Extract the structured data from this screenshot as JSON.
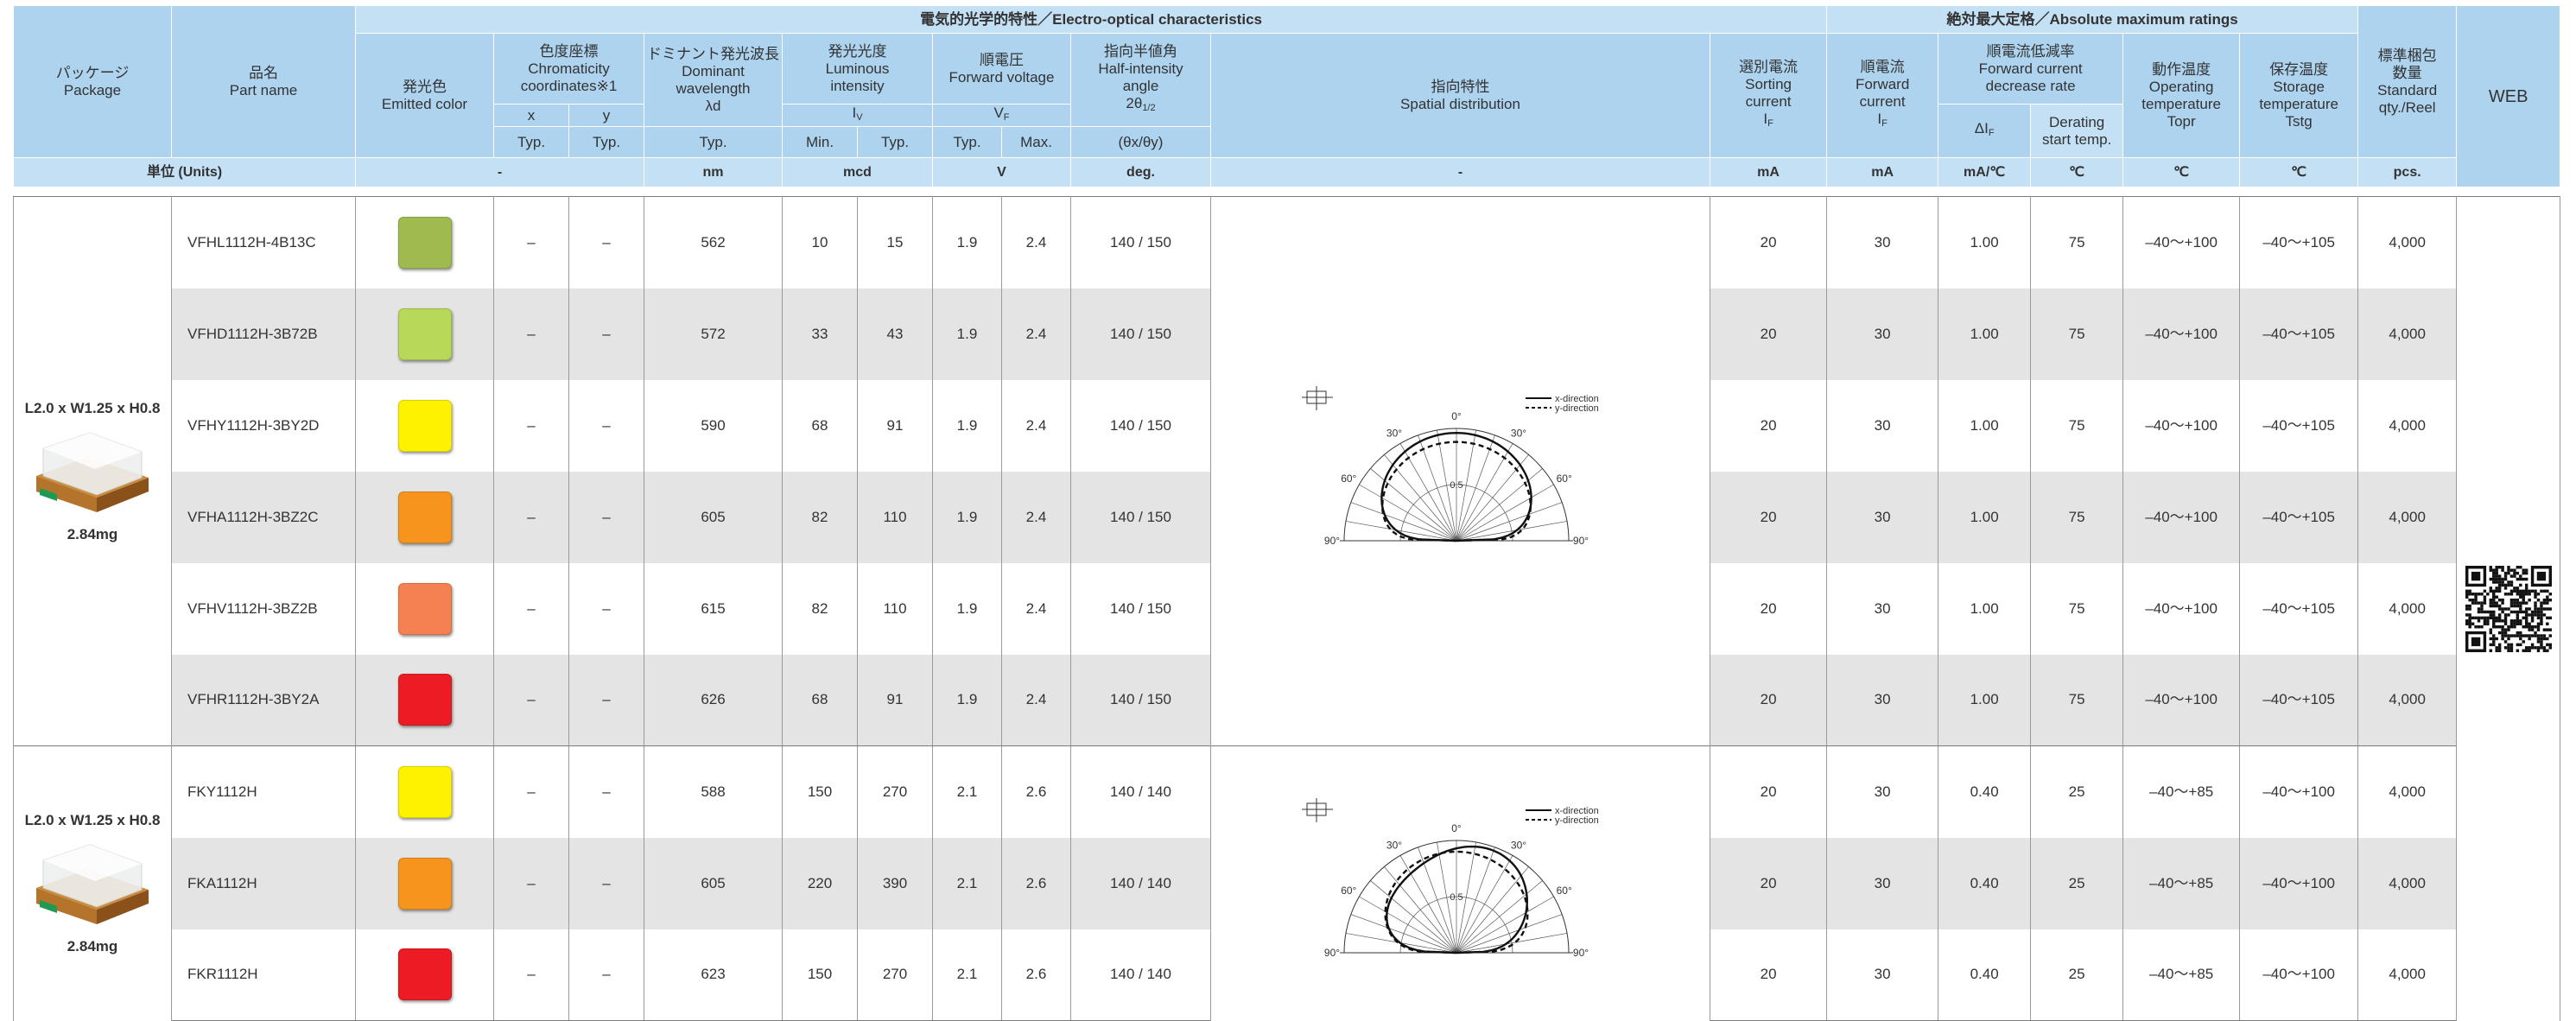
{
  "header": {
    "electro_optical": "電気的光学的特性／Electro-optical characteristics",
    "absolute_max": "絶対最大定格／Absolute maximum ratings",
    "package": [
      "パッケージ",
      "Package"
    ],
    "part_name": [
      "品名",
      "Part name"
    ],
    "emitted_color": [
      "発光色",
      "Emitted color"
    ],
    "chromaticity": [
      "色度座標",
      "Chromaticity",
      "coordinates※1"
    ],
    "chromaticity_axes": [
      "x",
      "y"
    ],
    "chromaticity_cols": [
      "Typ.",
      "Typ."
    ],
    "dominant": [
      "ドミナント発光波長",
      "Dominant",
      "wavelength",
      "λd"
    ],
    "dominant_col": "Typ.",
    "luminous": [
      "発光光度",
      "Luminous",
      "intensity"
    ],
    "luminous_symbol": {
      "main": "I",
      "sub": "V"
    },
    "luminous_cols": [
      "Min.",
      "Typ."
    ],
    "forward_voltage": [
      "順電圧",
      "Forward voltage"
    ],
    "forward_voltage_symbol": {
      "main": "V",
      "sub": "F"
    },
    "forward_voltage_cols": [
      "Typ.",
      "Max."
    ],
    "half_angle": [
      "指向半値角",
      "Half-intensity",
      "angle"
    ],
    "half_angle_symbol": {
      "main": "2θ",
      "sub": "1/2"
    },
    "half_angle_col": "(θx/θy)",
    "spatial": [
      "指向特性",
      "Spatial distribution"
    ],
    "sorting": [
      "選別電流",
      "Sorting",
      "current"
    ],
    "sorting_symbol": {
      "main": "I",
      "sub": "F"
    },
    "forward_current": [
      "順電流",
      "Forward",
      "current"
    ],
    "forward_current_symbol": {
      "main": "I",
      "sub": "F"
    },
    "decrease_rate": [
      "順電流低減率",
      "Forward current",
      "decrease rate"
    ],
    "decrease_rate_symbol": {
      "main": "ΔI",
      "sub": "F"
    },
    "derating": [
      "Derating",
      "start temp."
    ],
    "operating": [
      "動作温度",
      "Operating",
      "temperature",
      "Topr"
    ],
    "storage": [
      "保存温度",
      "Storage",
      "temperature",
      "Tstg"
    ],
    "qty": [
      "標準梱包",
      "数量",
      "Standard",
      "qty./Reel"
    ],
    "web": "WEB"
  },
  "units": {
    "label": "単位 (Units)",
    "values": [
      "-",
      "nm",
      "mcd",
      "V",
      "deg.",
      "-",
      "mA",
      "mA",
      "mA/℃",
      "℃",
      "℃",
      "℃",
      "pcs."
    ]
  },
  "groups": [
    {
      "package": {
        "size": "L2.0 x W1.25 x H0.8",
        "weight": "2.84mg"
      },
      "diagram": {
        "angle_labels": [
          "90°",
          "60°",
          "30°",
          "0°",
          "30°",
          "60°",
          "90°"
        ],
        "scale_label": "0.5",
        "legend": [
          "x-direction",
          "y-direction"
        ]
      },
      "rows": [
        {
          "part": "VFHL1112H-4B13C",
          "color": "#9fbb4f",
          "x": "–",
          "y": "–",
          "wavelength": "562",
          "iv_min": "10",
          "iv_typ": "15",
          "vf_typ": "1.9",
          "vf_max": "2.4",
          "angle": "140 / 150",
          "sorting": "20",
          "if": "30",
          "dif": "1.00",
          "derating": "75",
          "topr": "–40～+100",
          "tstg": "–40～+105",
          "qty": "4,000"
        },
        {
          "part": "VFHD1112H-3B72B",
          "color": "#b8d958",
          "x": "–",
          "y": "–",
          "wavelength": "572",
          "iv_min": "33",
          "iv_typ": "43",
          "vf_typ": "1.9",
          "vf_max": "2.4",
          "angle": "140 / 150",
          "sorting": "20",
          "if": "30",
          "dif": "1.00",
          "derating": "75",
          "topr": "–40～+100",
          "tstg": "–40～+105",
          "qty": "4,000"
        },
        {
          "part": "VFHY1112H-3BY2D",
          "color": "#fff200",
          "x": "–",
          "y": "–",
          "wavelength": "590",
          "iv_min": "68",
          "iv_typ": "91",
          "vf_typ": "1.9",
          "vf_max": "2.4",
          "angle": "140 / 150",
          "sorting": "20",
          "if": "30",
          "dif": "1.00",
          "derating": "75",
          "topr": "–40～+100",
          "tstg": "–40～+105",
          "qty": "4,000"
        },
        {
          "part": "VFHA1112H-3BZ2C",
          "color": "#f7941d",
          "x": "–",
          "y": "–",
          "wavelength": "605",
          "iv_min": "82",
          "iv_typ": "110",
          "vf_typ": "1.9",
          "vf_max": "2.4",
          "angle": "140 / 150",
          "sorting": "20",
          "if": "30",
          "dif": "1.00",
          "derating": "75",
          "topr": "–40～+100",
          "tstg": "–40～+105",
          "qty": "4,000"
        },
        {
          "part": "VFHV1112H-3BZ2B",
          "color": "#f58052",
          "x": "–",
          "y": "–",
          "wavelength": "615",
          "iv_min": "82",
          "iv_typ": "110",
          "vf_typ": "1.9",
          "vf_max": "2.4",
          "angle": "140 / 150",
          "sorting": "20",
          "if": "30",
          "dif": "1.00",
          "derating": "75",
          "topr": "–40～+100",
          "tstg": "–40～+105",
          "qty": "4,000"
        },
        {
          "part": "VFHR1112H-3BY2A",
          "color": "#ed1c24",
          "x": "–",
          "y": "–",
          "wavelength": "626",
          "iv_min": "68",
          "iv_typ": "91",
          "vf_typ": "1.9",
          "vf_max": "2.4",
          "angle": "140 / 150",
          "sorting": "20",
          "if": "30",
          "dif": "1.00",
          "derating": "75",
          "topr": "–40～+100",
          "tstg": "–40～+105",
          "qty": "4,000"
        }
      ]
    },
    {
      "package": {
        "size": "L2.0 x W1.25 x H0.8",
        "weight": "2.84mg"
      },
      "diagram": {
        "angle_labels": [
          "90°",
          "60°",
          "30°",
          "0°",
          "30°",
          "60°",
          "90°"
        ],
        "scale_label": "0.5",
        "legend": [
          "x-direction",
          "y-direction"
        ]
      },
      "rows": [
        {
          "part": "FKY1112H",
          "color": "#fff200",
          "x": "–",
          "y": "–",
          "wavelength": "588",
          "iv_min": "150",
          "iv_typ": "270",
          "vf_typ": "2.1",
          "vf_max": "2.6",
          "angle": "140 / 140",
          "sorting": "20",
          "if": "30",
          "dif": "0.40",
          "derating": "25",
          "topr": "–40～+85",
          "tstg": "–40～+100",
          "qty": "4,000"
        },
        {
          "part": "FKA1112H",
          "color": "#f7941d",
          "x": "–",
          "y": "–",
          "wavelength": "605",
          "iv_min": "220",
          "iv_typ": "390",
          "vf_typ": "2.1",
          "vf_max": "2.6",
          "angle": "140 / 140",
          "sorting": "20",
          "if": "30",
          "dif": "0.40",
          "derating": "25",
          "topr": "–40～+85",
          "tstg": "–40～+100",
          "qty": "4,000"
        },
        {
          "part": "FKR1112H",
          "color": "#ed1c24",
          "x": "–",
          "y": "–",
          "wavelength": "623",
          "iv_min": "150",
          "iv_typ": "270",
          "vf_typ": "2.1",
          "vf_max": "2.6",
          "angle": "140 / 140",
          "sorting": "20",
          "if": "30",
          "dif": "0.40",
          "derating": "25",
          "topr": "–40～+85",
          "tstg": "–40～+100",
          "qty": "4,000"
        }
      ]
    }
  ]
}
